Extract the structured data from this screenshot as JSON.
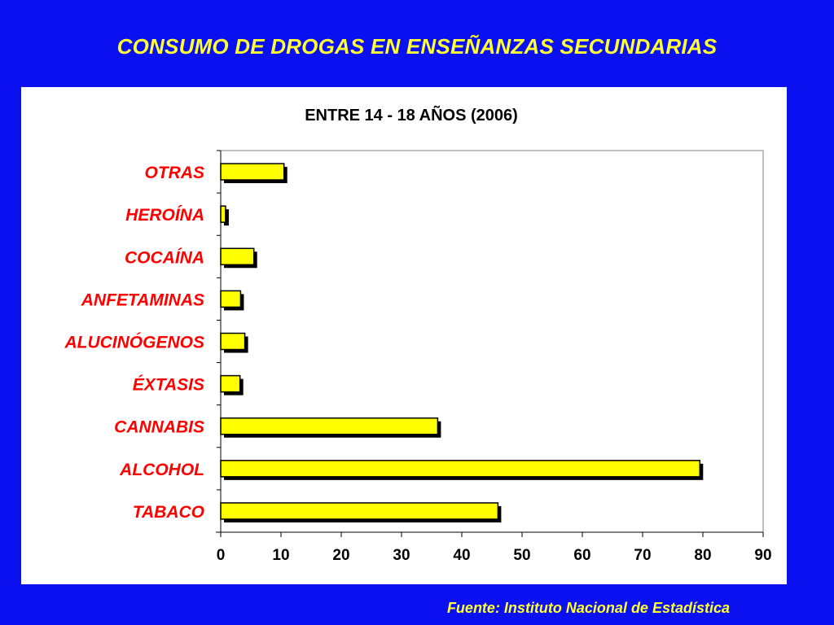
{
  "slide": {
    "title": "CONSUMO DE DROGAS EN ENSEÑANZAS SECUNDARIAS",
    "source": "Fuente: Instituto Nacional de Estadística"
  },
  "colors": {
    "background": "#0a10f0",
    "title_text": "#ffff33",
    "bar_fill": "#ffff00",
    "bar_shadow": "#000000",
    "category_label": "#ff0000"
  },
  "chart_data": {
    "type": "bar",
    "orientation": "horizontal",
    "title": "ENTRE 14 - 18 AÑOS (2006)",
    "categories": [
      "OTRAS",
      "HEROÍNA",
      "COCAÍNA",
      "ANFETAMINAS",
      "ALUCINÓGENOS",
      "ÉXTASIS",
      "CANNABIS",
      "ALCOHOL",
      "TABACO"
    ],
    "values": [
      10.5,
      0.8,
      5.5,
      3.3,
      4.0,
      3.2,
      36.0,
      79.5,
      46.0
    ],
    "xlabel": "",
    "ylabel": "",
    "xlim": [
      0,
      90
    ],
    "xticks": [
      "0",
      "10",
      "20",
      "30",
      "40",
      "50",
      "60",
      "70",
      "80",
      "90"
    ],
    "grid": false,
    "legend": "none"
  }
}
